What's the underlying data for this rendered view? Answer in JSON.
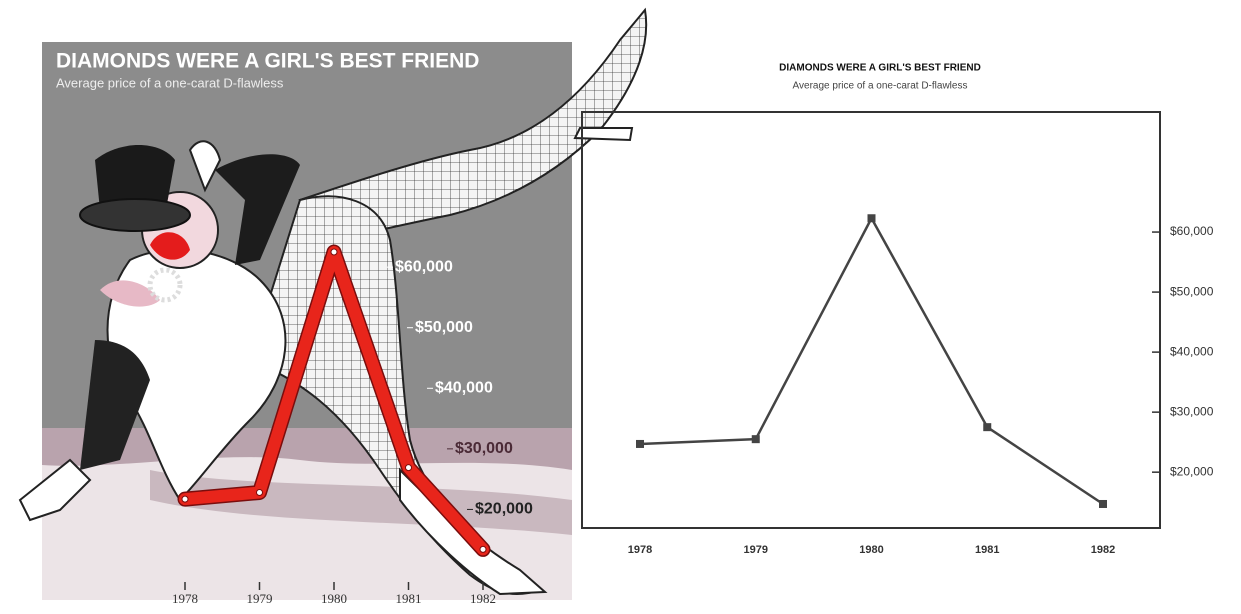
{
  "chart_data": [
    {
      "type": "line",
      "title": "DIAMONDS WERE A GIRL'S BEST FRIEND",
      "subtitle": "Average price of a one-carat D-flawless",
      "categories": [
        "1978",
        "1979",
        "1980",
        "1981",
        "1982"
      ],
      "series": [
        {
          "color": "#e8251b",
          "values": [
            21700,
            22800,
            62500,
            26900,
            13400
          ]
        }
      ],
      "ylim": [
        10000,
        80000
      ],
      "yticks": [
        {
          "value": 20000,
          "label": "$20,000"
        },
        {
          "value": 30000,
          "label": "$30,000"
        },
        {
          "value": 40000,
          "label": "$40,000"
        },
        {
          "value": 50000,
          "label": "$50,000"
        },
        {
          "value": 60000,
          "label": "$60,000"
        }
      ]
    },
    {
      "type": "line",
      "title": "DIAMONDS WERE A GIRL'S BEST FRIEND",
      "subtitle": "Average price of a one-carat D-flawless",
      "categories": [
        "1978",
        "1979",
        "1980",
        "1981",
        "1982"
      ],
      "series": [
        {
          "color": "#444444",
          "values": [
            24700,
            25500,
            62300,
            27500,
            14700
          ]
        }
      ],
      "ylim": [
        10700,
        80000
      ],
      "yticks": [
        {
          "value": 20000,
          "label": "$20,000"
        },
        {
          "value": 30000,
          "label": "$30,000"
        },
        {
          "value": 40000,
          "label": "$40,000"
        },
        {
          "value": 50000,
          "label": "$50,000"
        },
        {
          "value": 60000,
          "label": "$60,000"
        }
      ]
    }
  ]
}
